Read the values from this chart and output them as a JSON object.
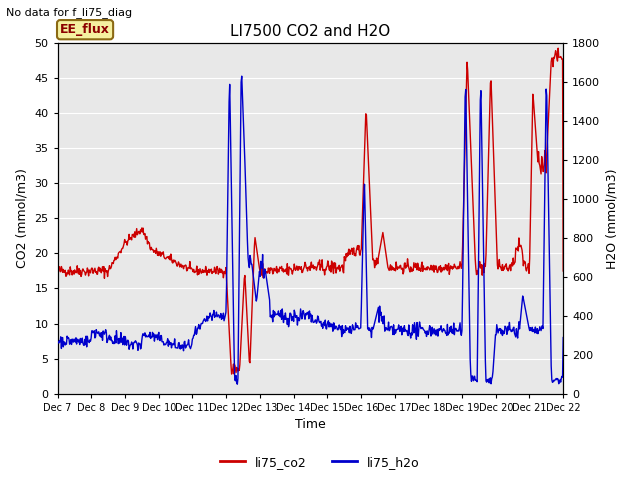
{
  "title": "LI7500 CO2 and H2O",
  "top_left_text": "No data for f_li75_diag",
  "box_label": "EE_flux",
  "xlabel": "Time",
  "ylabel_left": "CO2 (mmol/m3)",
  "ylabel_right": "H2O (mmol/m3)",
  "ylim_left": [
    0,
    50
  ],
  "ylim_right": [
    0,
    1800
  ],
  "yticks_left": [
    0,
    5,
    10,
    15,
    20,
    25,
    30,
    35,
    40,
    45,
    50
  ],
  "yticks_right": [
    0,
    200,
    400,
    600,
    800,
    1000,
    1200,
    1400,
    1600,
    1800
  ],
  "x_labels": [
    "Dec 7",
    "Dec 8",
    "Dec 9",
    "Dec 10",
    "Dec 11",
    "Dec 12",
    "Dec 13",
    "Dec 14",
    "Dec 15",
    "Dec 16",
    "Dec 17",
    "Dec 18",
    "Dec 19",
    "Dec 20",
    "Dec 21",
    "Dec 22"
  ],
  "n_points": 800,
  "background_color": "#e8e8e8",
  "co2_color": "#cc0000",
  "h2o_color": "#0000cc",
  "grid_color": "#ffffff",
  "legend_co2": "li75_co2",
  "legend_h2o": "li75_h2o",
  "figsize": [
    6.4,
    4.8
  ],
  "dpi": 100
}
